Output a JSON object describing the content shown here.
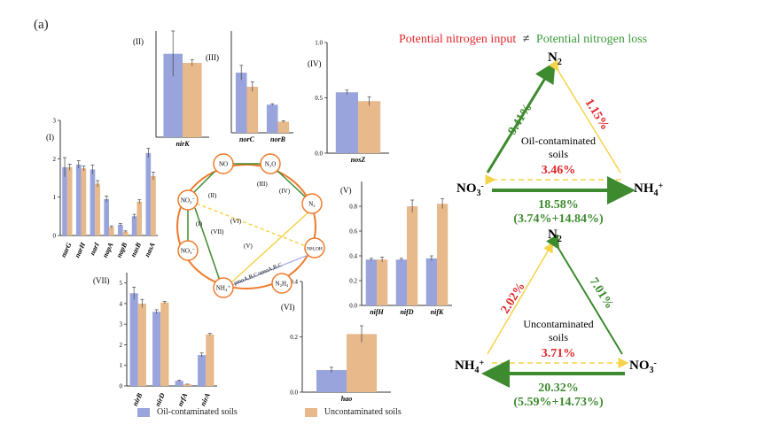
{
  "panel_label": "(a)",
  "colors": {
    "oil": "#9aa4dc",
    "uncont": "#e8b98a",
    "green": "#3d8a2f",
    "yellow": "#f5d34a",
    "red": "#e0262a",
    "orange": "#ef7a2a"
  },
  "legend": {
    "oil": "Oil-contaminated soils",
    "uncont": "Uncontaminated  soils"
  },
  "chart_data": [
    {
      "id": "I",
      "type": "bar",
      "label": "(I)",
      "ylim": [
        0,
        3
      ],
      "yticks": [
        "0",
        "1",
        "2",
        "3"
      ],
      "categories": [
        "narG",
        "narH",
        "narI",
        "napA",
        "napB",
        "nasB",
        "nasA"
      ],
      "series": [
        {
          "name": "Oil-contaminated soils",
          "values": [
            1.78,
            1.85,
            1.72,
            0.95,
            0.28,
            0.5,
            2.15
          ],
          "err": [
            0.25,
            0.1,
            0.12,
            0.08,
            0.03,
            0.05,
            0.12
          ]
        },
        {
          "name": "Uncontaminated soils",
          "values": [
            1.78,
            1.75,
            1.35,
            0.22,
            0.1,
            0.88,
            1.55
          ],
          "err": [
            0.08,
            0.06,
            0.08,
            0.03,
            0.02,
            0.05,
            0.1
          ]
        }
      ]
    },
    {
      "id": "II",
      "type": "bar",
      "label": "(II)",
      "ylim": [
        0,
        1.4
      ],
      "yticks": [],
      "categories": [
        "nirK"
      ],
      "series": [
        {
          "name": "Oil-contaminated soils",
          "values": [
            1.1
          ],
          "err": [
            0.3
          ]
        },
        {
          "name": "Uncontaminated soils",
          "values": [
            0.98
          ],
          "err": [
            0.04
          ]
        }
      ]
    },
    {
      "id": "III",
      "type": "bar",
      "label": "(III)",
      "ylim": [
        0,
        2.1
      ],
      "yticks": [],
      "categories": [
        "norC",
        "norB"
      ],
      "series": [
        {
          "name": "Oil-contaminated soils",
          "values": [
            1.24,
            0.58
          ],
          "err": [
            0.15,
            0.02
          ]
        },
        {
          "name": "Uncontaminated soils",
          "values": [
            0.95,
            0.23
          ],
          "err": [
            0.1,
            0.02
          ]
        }
      ]
    },
    {
      "id": "IV",
      "type": "bar",
      "label": "(IV)",
      "ylim": [
        0,
        1.0
      ],
      "yticks": [
        "0.0",
        "0.5",
        "1.0"
      ],
      "categories": [
        "nosZ"
      ],
      "series": [
        {
          "name": "Oil-contaminated soils",
          "values": [
            0.55
          ],
          "err": [
            0.02
          ]
        },
        {
          "name": "Uncontaminated soils",
          "values": [
            0.47
          ],
          "err": [
            0.04
          ]
        }
      ]
    },
    {
      "id": "V",
      "type": "bar",
      "label": "(V)",
      "ylim": [
        0,
        1.0
      ],
      "yticks": [
        "0.0",
        "0.2",
        "0.4",
        "0.6",
        "0.8"
      ],
      "categories": [
        "nifH",
        "nifD",
        "nifK"
      ],
      "series": [
        {
          "name": "Oil-contaminated soils",
          "values": [
            0.37,
            0.37,
            0.38
          ],
          "err": [
            0.01,
            0.01,
            0.02
          ]
        },
        {
          "name": "Uncontaminated soils",
          "values": [
            0.37,
            0.8,
            0.82
          ],
          "err": [
            0.02,
            0.05,
            0.04
          ]
        }
      ]
    },
    {
      "id": "VI",
      "type": "bar",
      "label": "(VI)",
      "ylim": [
        0,
        0.4
      ],
      "yticks": [
        "0.0",
        "0.2",
        "0.4"
      ],
      "categories": [
        "hao"
      ],
      "series": [
        {
          "name": "Oil-contaminated soils",
          "values": [
            0.08
          ],
          "err": [
            0.01
          ]
        },
        {
          "name": "Uncontaminated soils",
          "values": [
            0.21
          ],
          "err": [
            0.03
          ]
        }
      ]
    },
    {
      "id": "VII",
      "type": "bar",
      "label": "(VII)",
      "ylim": [
        0,
        5.5
      ],
      "yticks": [
        "0",
        "1",
        "2",
        "3",
        "4",
        "5"
      ],
      "categories": [
        "nirB",
        "nirD",
        "nrfA",
        "nirA"
      ],
      "series": [
        {
          "name": "Oil-contaminated soils",
          "values": [
            4.5,
            3.6,
            0.25,
            1.5
          ],
          "err": [
            0.3,
            0.1,
            0.03,
            0.1
          ]
        },
        {
          "name": "Uncontaminated soils",
          "values": [
            4.0,
            4.05,
            0.08,
            2.5
          ],
          "err": [
            0.2,
            0.05,
            0.01,
            0.05
          ]
        }
      ]
    }
  ],
  "cycle": {
    "nodes": [
      "NO",
      "N2O",
      "N2",
      "NH2OH",
      "N2H4",
      "NH4+",
      "NO2",
      "NO3"
    ],
    "steps": [
      "(II)",
      "(III)",
      "(IV)",
      "(V)",
      "(VI)",
      "(VII)",
      "(I)"
    ],
    "enzyme_label": "pmoA,B,C/amoA,B,C"
  },
  "triangles": {
    "title_input": "Potential nitrogen input",
    "title_neq": "≠",
    "title_loss": "Potential nitrogen loss",
    "oil": {
      "n2": "N",
      "n2_sub": "2",
      "left": "NO",
      "left_sub": "3",
      "left_sup": "-",
      "right": "NH",
      "right_sub": "4",
      "right_sup": "+",
      "left_edge": "9.41%",
      "right_edge": "1.15%",
      "label": "Oil-contaminated",
      "label2": "soils",
      "dashed": "3.46%",
      "bottom": "18.58%",
      "bottom2": "(3.74%+14.84%)"
    },
    "uncont": {
      "n2": "N",
      "n2_sub": "2",
      "left": "NH",
      "left_sub": "4",
      "left_sup": "+",
      "right": "NO",
      "right_sub": "3",
      "right_sup": "-",
      "left_edge": "2.02%",
      "right_edge": "7.01%",
      "label": "Uncontaminated",
      "label2": "soils",
      "dashed": "3.71%",
      "bottom": "20.32%",
      "bottom2": "(5.59%+14.73%)"
    }
  }
}
